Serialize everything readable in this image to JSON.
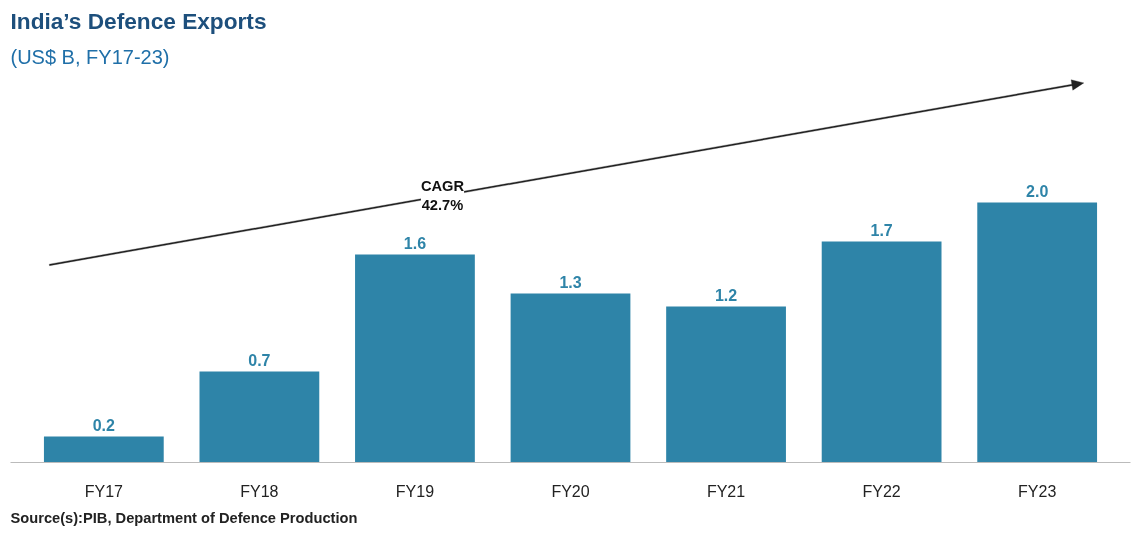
{
  "chart_data": {
    "type": "bar",
    "title": "India’s Defence Exports",
    "subtitle": "(US$ B, FY17-23)",
    "categories": [
      "FY17",
      "FY18",
      "FY19",
      "FY20",
      "FY21",
      "FY22",
      "FY23"
    ],
    "values": [
      0.2,
      0.7,
      1.6,
      1.3,
      1.2,
      1.7,
      2.0
    ],
    "value_labels": [
      "0.2",
      "0.7",
      "1.6",
      "1.3",
      "1.2",
      "1.7",
      "2.0"
    ],
    "color": "#2e84a8",
    "grid": false,
    "annotations": [
      "CAGR\n42.7%",
      "Source(s):PIB, Department of Defence Production"
    ]
  }
}
